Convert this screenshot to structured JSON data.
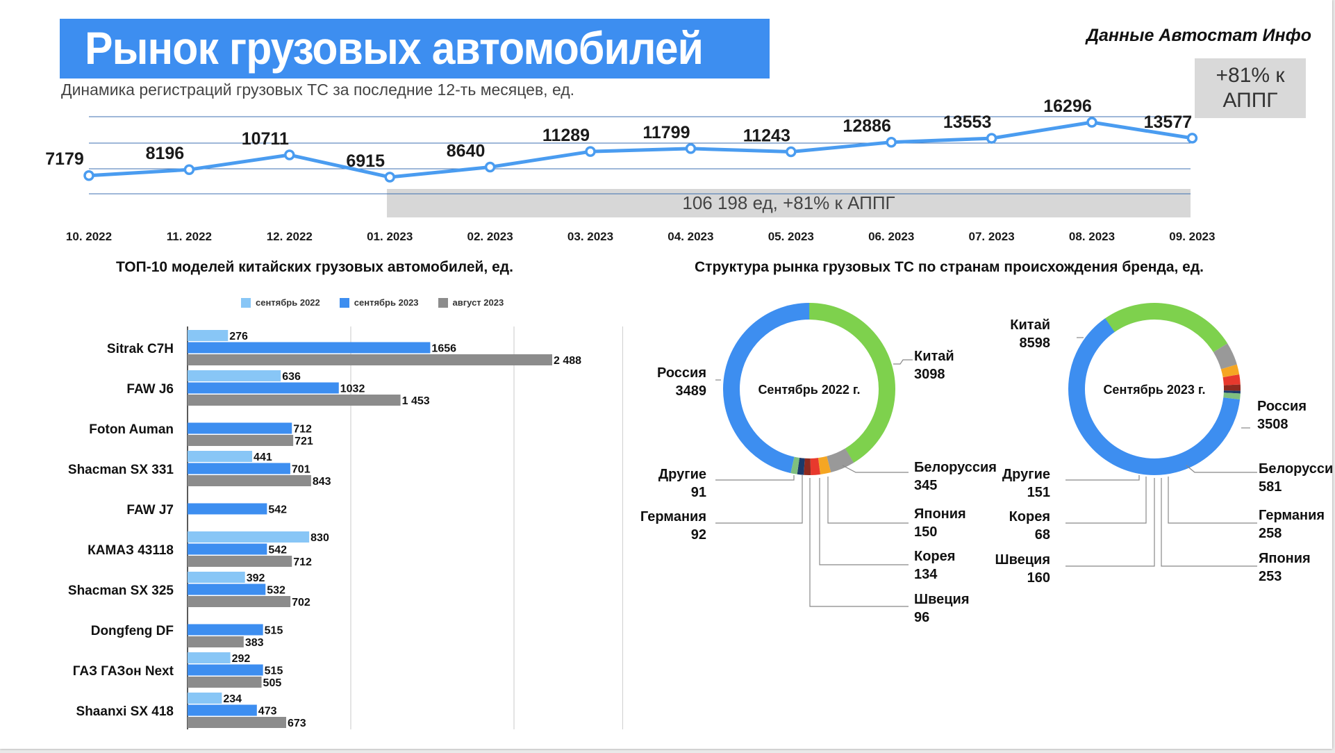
{
  "title": "Рынок грузовых автомобилей",
  "source": "Данные Автостат Инфо",
  "yoy_badge": "+81% к АППГ",
  "colors": {
    "accent": "#3d8ef0",
    "line": "#4a9cf0",
    "sep2022": "#88c6f6",
    "sep2023": "#3d8ef0",
    "aug2023": "#8c8c8c",
    "china": "#7ed14d",
    "russia": "#3d8ef0",
    "belarus": "#999999",
    "japan": "#f5a623",
    "korea": "#e8392d",
    "sweden": "#8e2a1f",
    "germany": "#1b3a6b",
    "other": "#7fbf7f"
  },
  "line_chart": {
    "subtitle": "Динамика регистраций грузовых ТС за последние 12-ть месяцев, ед.",
    "band_text": "106 198 ед, +81% к АППГ"
  },
  "bar_chart": {
    "title": "ТОП-10 моделей китайских грузовых автомобилей, ед.",
    "legend": [
      "сентябрь 2022",
      "сентябрь 2023",
      "август 2023"
    ]
  },
  "donut_section": {
    "title": "Структура рынка грузовых ТС по странам происхождения бренда, ед.",
    "center_2022": "Сентябрь 2022 г.",
    "center_2023": "Сентябрь 2023 г."
  },
  "chart_data": [
    {
      "type": "line",
      "categories": [
        "10. 2022",
        "11. 2022",
        "12. 2022",
        "01. 2023",
        "02. 2023",
        "03. 2023",
        "04. 2023",
        "05. 2023",
        "06. 2023",
        "07. 2023",
        "08. 2023",
        "09. 2023"
      ],
      "values": [
        7179,
        8196,
        10711,
        6915,
        8640,
        11289,
        11799,
        11243,
        12886,
        13553,
        16296,
        13577
      ],
      "value_labels": [
        "7179",
        "8196",
        "10711",
        "6915",
        "8640",
        "11289",
        "11799",
        "11243",
        "12886",
        "13553",
        "16296",
        "13577"
      ],
      "grid": true
    },
    {
      "type": "bar",
      "orientation": "horizontal",
      "categories": [
        "Sitrak C7H",
        "FAW J6",
        "Foton Auman",
        "Shacman SX 331",
        "FAW J7",
        "КАМАЗ 43118",
        "Shacman SX 325",
        "Dongfeng DF",
        "ГАЗ ГАЗон Next",
        "Shaanxi SX 418"
      ],
      "series": [
        {
          "name": "сентябрь 2022",
          "values": [
            276,
            636,
            null,
            441,
            null,
            830,
            392,
            null,
            292,
            234
          ],
          "labels": [
            "276",
            "636",
            "",
            "441",
            "",
            "830",
            "392",
            "",
            "292",
            "234"
          ]
        },
        {
          "name": "сентябрь 2023",
          "values": [
            1656,
            1032,
            712,
            701,
            542,
            542,
            532,
            515,
            515,
            473
          ],
          "labels": [
            "1656",
            "1032",
            "712",
            "701",
            "542",
            "542",
            "532",
            "515",
            "515",
            "473"
          ]
        },
        {
          "name": "август 2023",
          "values": [
            2488,
            1453,
            721,
            843,
            null,
            712,
            702,
            383,
            505,
            673
          ],
          "labels": [
            "2 488",
            "1 453",
            "721",
            "843",
            "",
            "712",
            "702",
            "383",
            "505",
            "673"
          ]
        }
      ],
      "xlim": [
        0,
        2800
      ],
      "grid": true,
      "legend_position": "top"
    },
    {
      "type": "pie",
      "variant": "donut",
      "center_label": "Сентябрь 2022 г.",
      "slices": [
        {
          "label": "Китай",
          "value": 3098,
          "color": "#7ed14d"
        },
        {
          "label": "Белоруссия",
          "value": 345,
          "color": "#999999"
        },
        {
          "label": "Япония",
          "value": 150,
          "color": "#f5a623"
        },
        {
          "label": "Корея",
          "value": 134,
          "color": "#e8392d"
        },
        {
          "label": "Швеция",
          "value": 96,
          "color": "#8e2a1f"
        },
        {
          "label": "Германия",
          "value": 92,
          "color": "#1b3a6b"
        },
        {
          "label": "Другие",
          "value": 91,
          "color": "#7fbf7f"
        },
        {
          "label": "Россия",
          "value": 3489,
          "color": "#3d8ef0"
        }
      ]
    },
    {
      "type": "pie",
      "variant": "donut",
      "center_label": "Сентябрь 2023 г.",
      "slices": [
        {
          "label": "Россия",
          "value": 3508,
          "color": "#7ed14d"
        },
        {
          "label": "Белоруссия",
          "value": 581,
          "color": "#999999"
        },
        {
          "label": "Германия",
          "value": 258,
          "color": "#f5a623"
        },
        {
          "label": "Япония",
          "value": 253,
          "color": "#e8392d"
        },
        {
          "label": "Швеция",
          "value": 160,
          "color": "#8e2a1f"
        },
        {
          "label": "Корея",
          "value": 68,
          "color": "#1b3a6b"
        },
        {
          "label": "Другие",
          "value": 151,
          "color": "#7fbf7f"
        },
        {
          "label": "Китай",
          "value": 8598,
          "color": "#3d8ef0"
        }
      ]
    }
  ]
}
